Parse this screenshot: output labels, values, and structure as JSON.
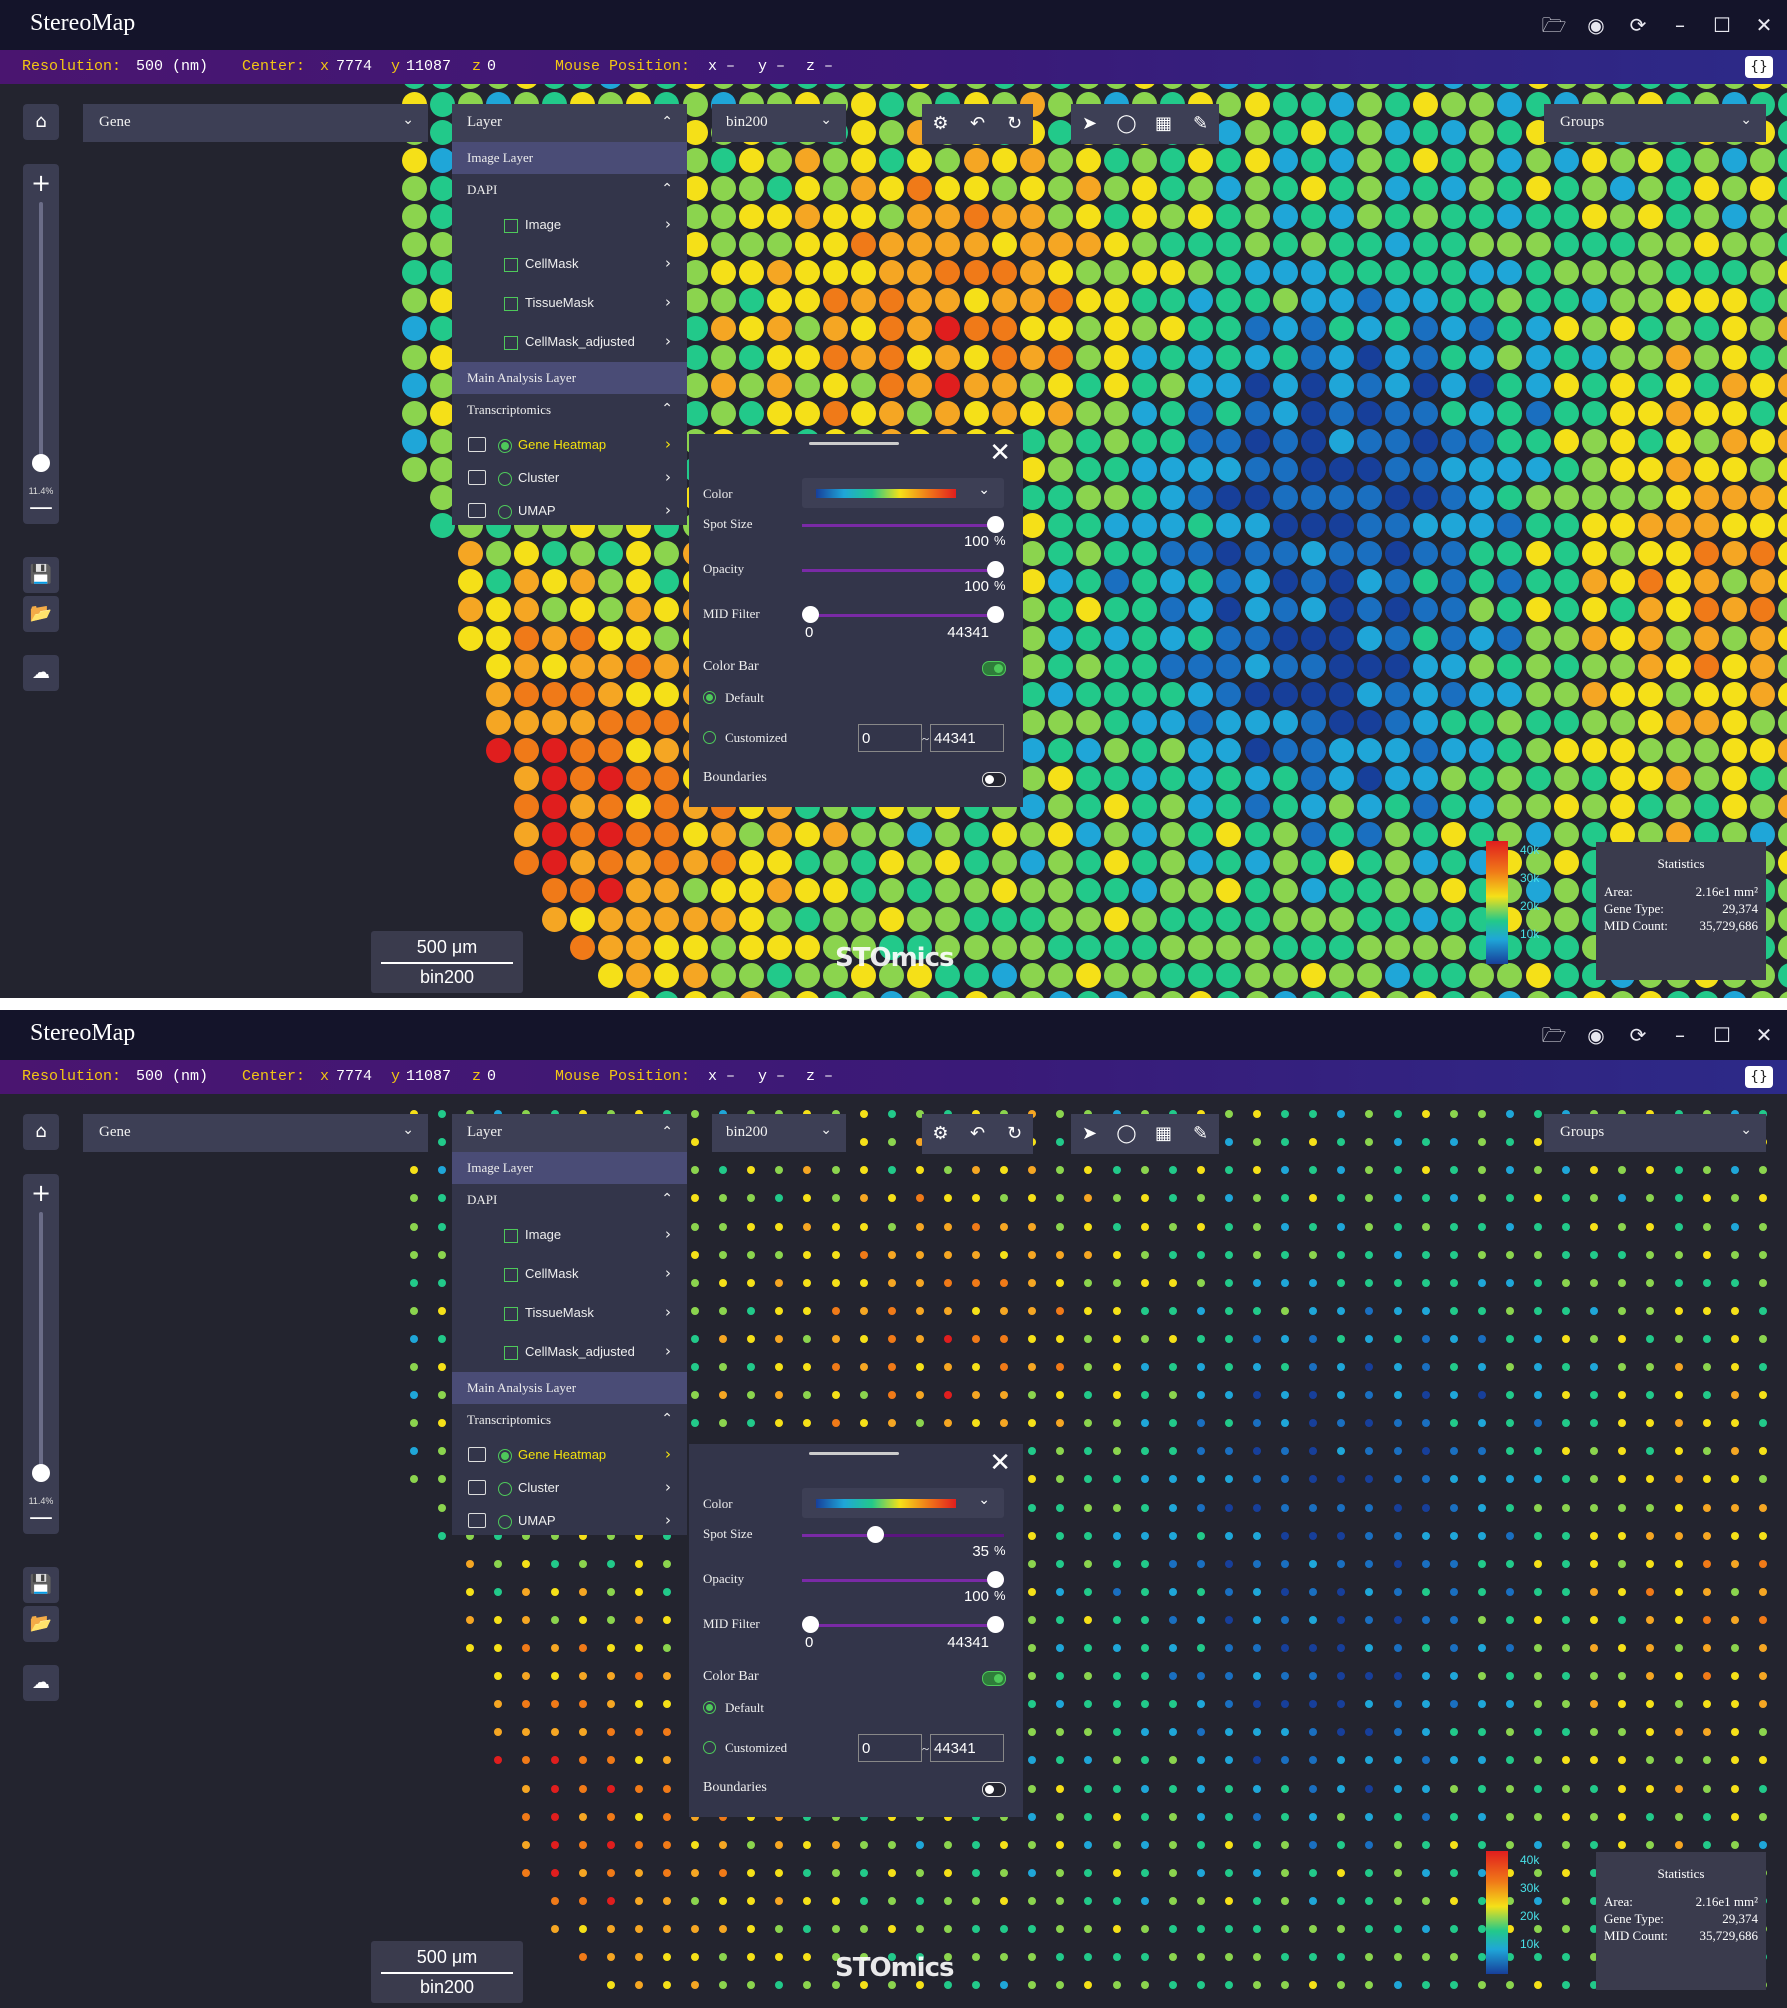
{
  "app": {
    "title": "StereoMap",
    "window_icons": [
      "folder-open-icon",
      "settings-icon",
      "refresh-icon",
      "minimize-icon",
      "maximize-icon",
      "close-icon"
    ]
  },
  "infobar": {
    "resolution_label": "Resolution:",
    "resolution_value": "500 (nm)",
    "center_label": "Center:",
    "center_x_label": "x",
    "center_x": "7774",
    "center_y_label": "y",
    "center_y": "11087",
    "center_z_label": "z",
    "center_z": "0",
    "mouse_label": "Mouse Position:",
    "mouse_x": "x –",
    "mouse_y": "y –",
    "mouse_z": "z –",
    "corner_button": "{}"
  },
  "controls": {
    "gene_dropdown": "Gene",
    "bin_dropdown": "bin200",
    "groups_dropdown": "Groups",
    "zoom_percent": "11.4%"
  },
  "layer_panel": {
    "title": "Layer",
    "image_section": "Image Layer",
    "dapi_group": "DAPI",
    "image_items": [
      "Image",
      "CellMask",
      "TissueMask",
      "CellMask_adjusted"
    ],
    "analysis_section": "Main Analysis Layer",
    "transcriptomics_group": "Transcriptomics",
    "analysis_items": [
      {
        "label": "Gene Heatmap",
        "selected": true
      },
      {
        "label": "Cluster",
        "selected": false
      },
      {
        "label": "UMAP",
        "selected": false
      }
    ]
  },
  "settings": {
    "color_label": "Color",
    "spot_size_label": "Spot Size",
    "opacity_label": "Opacity",
    "opacity_value": "100",
    "percent": "%",
    "mid_filter_label": "MID Filter",
    "mid_min": "0",
    "mid_max": "44341",
    "color_bar_label": "Color Bar",
    "color_bar_on": true,
    "default_label": "Default",
    "customized_label": "Customized",
    "custom_min": "0",
    "custom_max": "44341",
    "boundaries_label": "Boundaries",
    "boundaries_on": false
  },
  "colorbar": {
    "ticks": [
      "40k",
      "30k",
      "20k",
      "10k"
    ]
  },
  "statistics": {
    "title": "Statistics",
    "area_label": "Area:",
    "area_value": "2.16e1 mm²",
    "gene_type_label": "Gene Type:",
    "gene_type_value": "29,374",
    "mid_count_label": "MID Count:",
    "mid_count_value": "35,729,686"
  },
  "scale": {
    "length": "500 μm",
    "bin": "bin200"
  },
  "logo": "STOmics",
  "views": [
    {
      "spot_size": "100",
      "spot_size_fraction": 1.0
    },
    {
      "spot_size": "35",
      "spot_size_fraction": 0.35
    }
  ],
  "colors": {
    "accent_yellow": "#f3c613",
    "toggle_green": "#4ec95a",
    "heat_scale": [
      "#173f9a",
      "#1a6fc0",
      "#1fa6d8",
      "#22c98a",
      "#8bd44e",
      "#f5e018",
      "#f5a623",
      "#f07a18",
      "#e01e1e"
    ]
  }
}
